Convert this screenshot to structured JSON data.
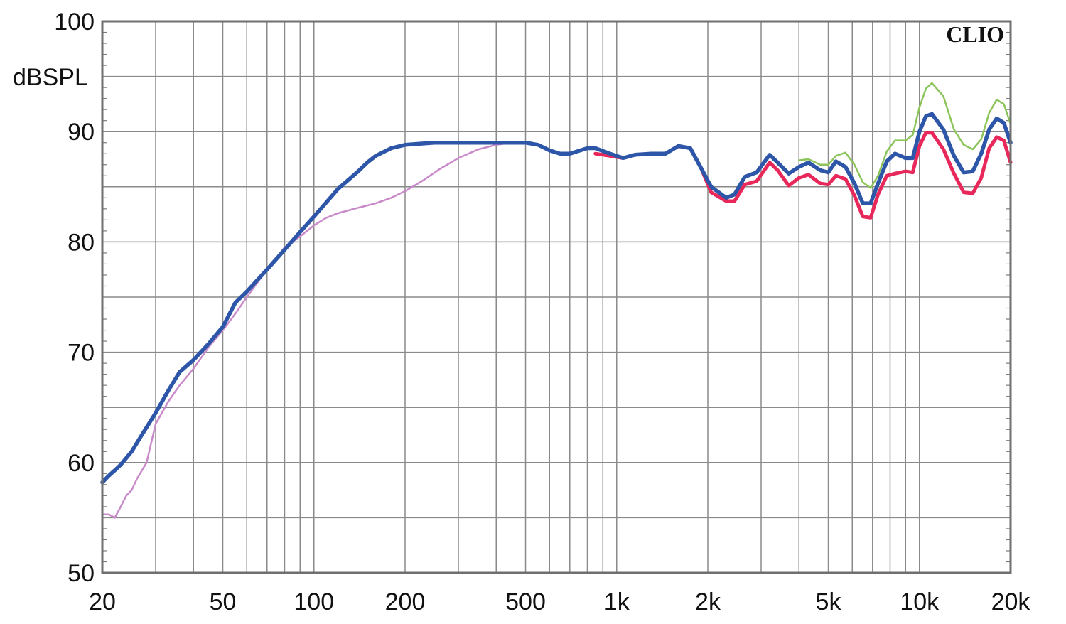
{
  "chart_data": {
    "type": "line",
    "title": "",
    "brand": "CLIO",
    "ylabel": "dBSPL",
    "xlabel": "",
    "x_scale": "log",
    "xlim": [
      20,
      20000
    ],
    "ylim": [
      50,
      100
    ],
    "grid": true,
    "x_ticks": [
      {
        "value": 20,
        "label": "20"
      },
      {
        "value": 50,
        "label": "50"
      },
      {
        "value": 100,
        "label": "100"
      },
      {
        "value": 200,
        "label": "200"
      },
      {
        "value": 500,
        "label": "500"
      },
      {
        "value": 1000,
        "label": "1k"
      },
      {
        "value": 2000,
        "label": "2k"
      },
      {
        "value": 5000,
        "label": "5k"
      },
      {
        "value": 10000,
        "label": "10k"
      },
      {
        "value": 20000,
        "label": "20k"
      }
    ],
    "y_ticks": [
      {
        "value": 50,
        "label": "50"
      },
      {
        "value": 60,
        "label": "60"
      },
      {
        "value": 70,
        "label": "70"
      },
      {
        "value": 80,
        "label": "80"
      },
      {
        "value": 90,
        "label": "90"
      },
      {
        "value": 100,
        "label": "100"
      }
    ],
    "series": [
      {
        "color": "#c88ac8",
        "width": 2.5,
        "points": [
          [
            20,
            55.3
          ],
          [
            21,
            55.3
          ],
          [
            22,
            55
          ],
          [
            23,
            56
          ],
          [
            24,
            57
          ],
          [
            25,
            57.5
          ],
          [
            26,
            58.5
          ],
          [
            28,
            60
          ],
          [
            30,
            63.5
          ],
          [
            33,
            65.5
          ],
          [
            36,
            67
          ],
          [
            40,
            68.5
          ],
          [
            45,
            70.5
          ],
          [
            50,
            72
          ],
          [
            55,
            73.5
          ],
          [
            60,
            75
          ],
          [
            70,
            77.5
          ],
          [
            80,
            79.5
          ],
          [
            90,
            80.5
          ],
          [
            100,
            81.5
          ],
          [
            110,
            82.2
          ],
          [
            120,
            82.6
          ],
          [
            140,
            83.1
          ],
          [
            160,
            83.5
          ],
          [
            180,
            84
          ],
          [
            200,
            84.6
          ],
          [
            230,
            85.6
          ],
          [
            260,
            86.6
          ],
          [
            300,
            87.6
          ],
          [
            350,
            88.4
          ],
          [
            400,
            88.8
          ],
          [
            450,
            89
          ]
        ]
      },
      {
        "color": "#8cc45a",
        "width": 2.5,
        "points": [
          [
            4000,
            87.4
          ],
          [
            4300,
            87.5
          ],
          [
            4700,
            87
          ],
          [
            5000,
            87
          ],
          [
            5300,
            87.8
          ],
          [
            5700,
            88.1
          ],
          [
            6100,
            87
          ],
          [
            6500,
            85.4
          ],
          [
            6900,
            84.9
          ],
          [
            7300,
            86
          ],
          [
            7800,
            88.2
          ],
          [
            8300,
            89.2
          ],
          [
            9000,
            89.2
          ],
          [
            9500,
            89.7
          ],
          [
            10000,
            92.2
          ],
          [
            10500,
            93.9
          ],
          [
            11000,
            94.4
          ],
          [
            12000,
            93.2
          ],
          [
            13000,
            90.2
          ],
          [
            14000,
            88.8
          ],
          [
            15000,
            88.4
          ],
          [
            16000,
            89.3
          ],
          [
            17000,
            91.7
          ],
          [
            18000,
            92.9
          ],
          [
            19000,
            92.5
          ],
          [
            20000,
            90.7
          ]
        ]
      },
      {
        "color": "#e8285a",
        "width": 5,
        "points": [
          [
            850,
            88
          ],
          [
            950,
            87.8
          ],
          [
            1050,
            87.6
          ],
          [
            1150,
            87.9
          ],
          [
            1300,
            88
          ],
          [
            1450,
            88
          ],
          [
            1600,
            88.7
          ],
          [
            1750,
            88.5
          ],
          [
            1900,
            86.7
          ],
          [
            2050,
            84.5
          ],
          [
            2300,
            83.7
          ],
          [
            2450,
            83.7
          ],
          [
            2650,
            85.2
          ],
          [
            2900,
            85.5
          ],
          [
            3200,
            87.2
          ],
          [
            3400,
            86.5
          ],
          [
            3700,
            85.1
          ],
          [
            4000,
            85.8
          ],
          [
            4300,
            86.1
          ],
          [
            4700,
            85.3
          ],
          [
            5000,
            85.2
          ],
          [
            5300,
            86
          ],
          [
            5700,
            85.7
          ],
          [
            6100,
            84.2
          ],
          [
            6500,
            82.3
          ],
          [
            6900,
            82.2
          ],
          [
            7300,
            84.3
          ],
          [
            7800,
            86
          ],
          [
            8300,
            86.2
          ],
          [
            9000,
            86.4
          ],
          [
            9500,
            86.3
          ],
          [
            10000,
            88.7
          ],
          [
            10500,
            89.9
          ],
          [
            11000,
            89.9
          ],
          [
            12000,
            88.4
          ],
          [
            13000,
            86.2
          ],
          [
            14000,
            84.5
          ],
          [
            15000,
            84.4
          ],
          [
            16000,
            85.8
          ],
          [
            17000,
            88.5
          ],
          [
            18000,
            89.5
          ],
          [
            19000,
            89.2
          ],
          [
            20000,
            87.2
          ]
        ]
      },
      {
        "color": "#2e56a8",
        "width": 5.5,
        "points": [
          [
            20,
            58.2
          ],
          [
            21,
            58.8
          ],
          [
            22,
            59.3
          ],
          [
            23,
            59.8
          ],
          [
            25,
            61
          ],
          [
            27,
            62.5
          ],
          [
            30,
            64.5
          ],
          [
            33,
            66.5
          ],
          [
            36,
            68.2
          ],
          [
            40,
            69.3
          ],
          [
            45,
            70.8
          ],
          [
            50,
            72.3
          ],
          [
            55,
            74.5
          ],
          [
            60,
            75.5
          ],
          [
            70,
            77.5
          ],
          [
            80,
            79.3
          ],
          [
            90,
            80.9
          ],
          [
            100,
            82.3
          ],
          [
            110,
            83.6
          ],
          [
            120,
            84.8
          ],
          [
            140,
            86.4
          ],
          [
            150,
            87.2
          ],
          [
            160,
            87.8
          ],
          [
            180,
            88.5
          ],
          [
            200,
            88.8
          ],
          [
            250,
            89
          ],
          [
            300,
            89
          ],
          [
            350,
            89
          ],
          [
            400,
            89
          ],
          [
            450,
            89
          ],
          [
            500,
            89
          ],
          [
            550,
            88.8
          ],
          [
            600,
            88.3
          ],
          [
            650,
            88
          ],
          [
            700,
            88
          ],
          [
            800,
            88.5
          ],
          [
            850,
            88.5
          ],
          [
            950,
            88
          ],
          [
            1050,
            87.6
          ],
          [
            1150,
            87.9
          ],
          [
            1300,
            88
          ],
          [
            1450,
            88
          ],
          [
            1600,
            88.7
          ],
          [
            1750,
            88.5
          ],
          [
            1900,
            86.7
          ],
          [
            2050,
            85
          ],
          [
            2300,
            84
          ],
          [
            2450,
            84.3
          ],
          [
            2650,
            85.9
          ],
          [
            2900,
            86.3
          ],
          [
            3200,
            87.9
          ],
          [
            3400,
            87.2
          ],
          [
            3700,
            86.2
          ],
          [
            4000,
            86.8
          ],
          [
            4300,
            87.2
          ],
          [
            4700,
            86.5
          ],
          [
            5000,
            86.3
          ],
          [
            5300,
            87.3
          ],
          [
            5700,
            86.8
          ],
          [
            6100,
            85.3
          ],
          [
            6500,
            83.5
          ],
          [
            6900,
            83.5
          ],
          [
            7300,
            85.3
          ],
          [
            7800,
            87.3
          ],
          [
            8300,
            88
          ],
          [
            9000,
            87.6
          ],
          [
            9500,
            87.6
          ],
          [
            10000,
            90
          ],
          [
            10500,
            91.4
          ],
          [
            11000,
            91.6
          ],
          [
            12000,
            90.2
          ],
          [
            13000,
            87.8
          ],
          [
            14000,
            86.3
          ],
          [
            15000,
            86.4
          ],
          [
            16000,
            88
          ],
          [
            17000,
            90.2
          ],
          [
            18000,
            91.2
          ],
          [
            19000,
            90.8
          ],
          [
            20000,
            89
          ]
        ]
      }
    ]
  }
}
